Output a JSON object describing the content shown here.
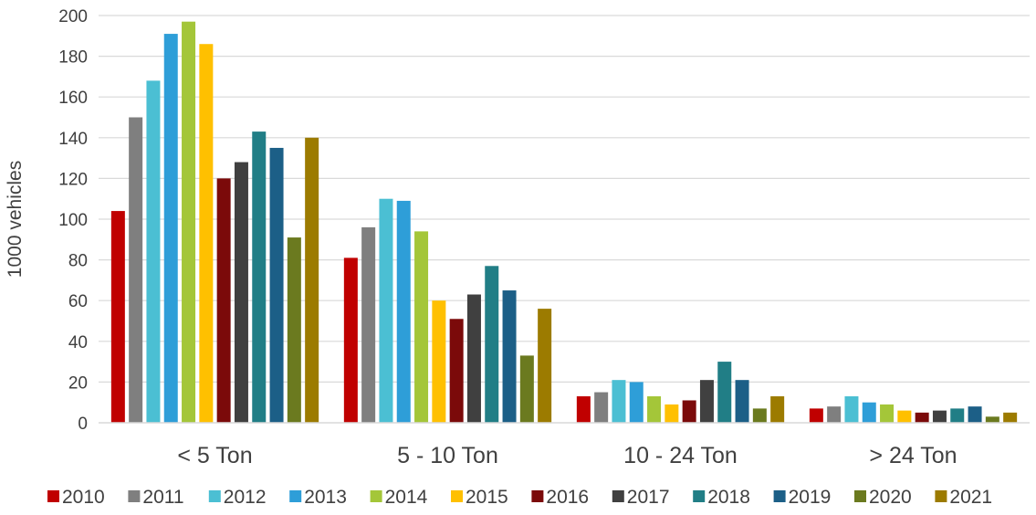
{
  "chart_data": {
    "type": "bar",
    "title": "",
    "xlabel": "",
    "ylabel": "1000 vehicles",
    "ylim": [
      0,
      200
    ],
    "yticks": [
      0,
      20,
      40,
      60,
      80,
      100,
      120,
      140,
      160,
      180,
      200
    ],
    "grid": true,
    "legend_position": "bottom",
    "categories": [
      "< 5 Ton",
      "5 - 10 Ton",
      "10 - 24 Ton",
      "> 24 Ton"
    ],
    "series": [
      {
        "name": "2010",
        "color": "#c00000",
        "values": [
          104,
          81,
          13,
          7
        ]
      },
      {
        "name": "2011",
        "color": "#7f7f7f",
        "values": [
          150,
          96,
          15,
          8
        ]
      },
      {
        "name": "2012",
        "color": "#4bbfd3",
        "values": [
          168,
          110,
          21,
          13
        ]
      },
      {
        "name": "2013",
        "color": "#2e9ed8",
        "values": [
          191,
          109,
          20,
          10
        ]
      },
      {
        "name": "2014",
        "color": "#a4c639",
        "values": [
          197,
          94,
          13,
          9
        ]
      },
      {
        "name": "2015",
        "color": "#ffc000",
        "values": [
          186,
          60,
          9,
          6
        ]
      },
      {
        "name": "2016",
        "color": "#7b0a0a",
        "values": [
          120,
          51,
          11,
          5
        ]
      },
      {
        "name": "2017",
        "color": "#404040",
        "values": [
          128,
          63,
          21,
          6
        ]
      },
      {
        "name": "2018",
        "color": "#217e86",
        "values": [
          143,
          77,
          30,
          7
        ]
      },
      {
        "name": "2019",
        "color": "#1c5f87",
        "values": [
          135,
          65,
          21,
          8
        ]
      },
      {
        "name": "2020",
        "color": "#6b7a1f",
        "values": [
          91,
          33,
          7,
          3
        ]
      },
      {
        "name": "2021",
        "color": "#9c7b00",
        "values": [
          140,
          56,
          13,
          5
        ]
      }
    ]
  }
}
